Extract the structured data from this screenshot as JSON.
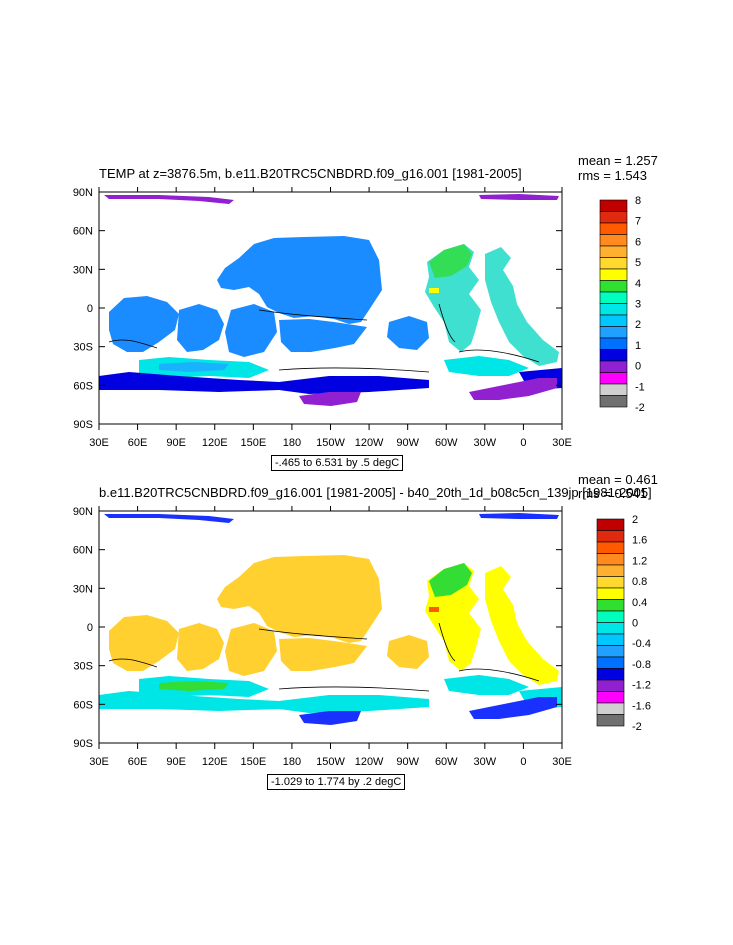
{
  "panels": [
    {
      "title": "TEMP at z=3876.5m, b.e11.B20TRC5CNBDRD.f09_g16.001 [1981-2005]",
      "mean": "mean = 1.257",
      "rms": "rms = 1.543",
      "range_label": "-.465 to 6.531 by .5 degC",
      "colorbar_labels": [
        "8",
        "7",
        "6",
        "5",
        "4",
        "3",
        "2",
        "1",
        "0",
        "-1",
        "-2"
      ],
      "colorbar_colors": [
        "#c00000",
        "#e02a10",
        "#ff5a00",
        "#ff8a20",
        "#ffb030",
        "#ffd830",
        "#ffff00",
        "#30e030",
        "#00ffbf",
        "#00e5e5",
        "#00c8ff",
        "#20a0ff",
        "#0070ff",
        "#0000e0",
        "#9020d0",
        "#ff00ff",
        "#d0d0d0",
        "#707070"
      ],
      "region_colors": {
        "main": "#1a8cff",
        "deep": "#0000e0",
        "band": "#19b2ff",
        "cyan": "#00e5e5",
        "teal": "#40e0d0",
        "green": "#33dd55",
        "purple": "#9020d0",
        "spot": "#ffff00"
      }
    },
    {
      "title": "b.e11.B20TRC5CNBDRD.f09_g16.001 [1981-2005] - b40_20th_1d_b08c5cn_139jp [1981-2005]",
      "mean": "mean = 0.461",
      "rms": "rms = 0.541",
      "range_label": "-1.029 to 1.774 by .2 degC",
      "colorbar_labels": [
        "2",
        "1.6",
        "1.2",
        "0.8",
        "0.4",
        "0",
        "-0.4",
        "-0.8",
        "-1.2",
        "-1.6",
        "-2"
      ],
      "colorbar_colors": [
        "#c00000",
        "#e02a10",
        "#ff5a00",
        "#ff8a20",
        "#ffb030",
        "#ffd830",
        "#ffff00",
        "#30e030",
        "#00ffbf",
        "#00e5e5",
        "#00c8ff",
        "#20a0ff",
        "#0070ff",
        "#0000e0",
        "#9020d0",
        "#ff00ff",
        "#d0d0d0",
        "#707070"
      ],
      "region_colors": {
        "main": "#ffd030",
        "deep": "#00e5e5",
        "band": "#33dd33",
        "cyan": "#00e5e5",
        "teal": "#ffff00",
        "green": "#33dd33",
        "purple": "#1a30ff",
        "spot": "#ff5a00"
      }
    }
  ],
  "axes": {
    "lat_labels": [
      "90N",
      "60N",
      "30N",
      "0",
      "30S",
      "60S",
      "90S"
    ],
    "lon_labels": [
      "30E",
      "60E",
      "90E",
      "120E",
      "150E",
      "180",
      "150W",
      "120W",
      "90W",
      "60W",
      "30W",
      "0",
      "30E"
    ]
  }
}
